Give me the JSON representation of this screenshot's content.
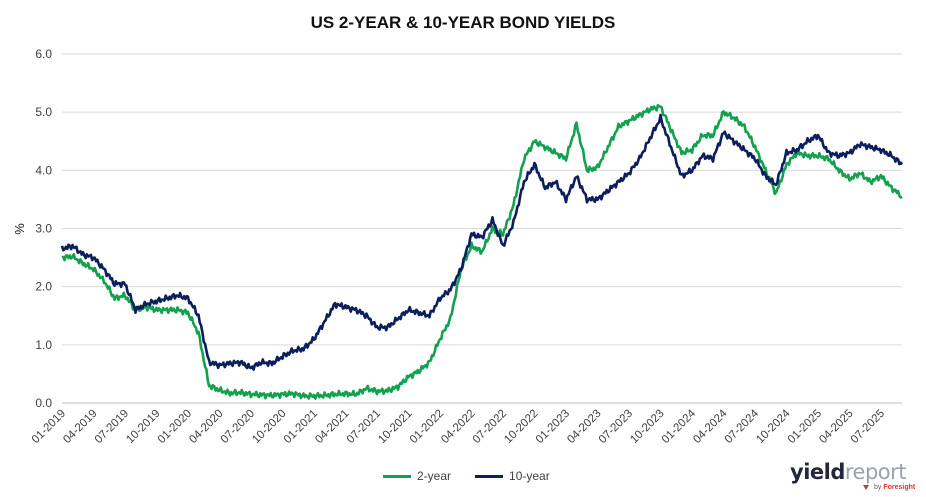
{
  "chart_data": {
    "type": "line",
    "title": "US 2-YEAR & 10-YEAR BOND YIELDS",
    "xlabel": "",
    "ylabel": "%",
    "ylim": [
      0,
      6
    ],
    "yticks": [
      "0.0",
      "1.0",
      "2.0",
      "3.0",
      "4.0",
      "5.0",
      "6.0"
    ],
    "xlim": [
      "2019-01",
      "2025-09"
    ],
    "xticks": [
      "01-2019",
      "04-2019",
      "07-2019",
      "10-2019",
      "01-2020",
      "04-2020",
      "07-2020",
      "10-2020",
      "01-2021",
      "04-2021",
      "07-2021",
      "10-2021",
      "01-2022",
      "04-2022",
      "07-2022",
      "10-2022",
      "01-2023",
      "04-2023",
      "07-2023",
      "10-2023",
      "01-2024",
      "04-2024",
      "07-2024",
      "10-2024",
      "01-2025",
      "04-2025",
      "07-2025"
    ],
    "grid": "horizontal",
    "legend_position": "bottom",
    "series": [
      {
        "name": "2-year",
        "color": "#13a150",
        "x": [
          "2019-01",
          "2019-02",
          "2019-03",
          "2019-04",
          "2019-05",
          "2019-06",
          "2019-07",
          "2019-08",
          "2019-09",
          "2019-10",
          "2019-11",
          "2019-12",
          "2020-01",
          "2020-02",
          "2020-03",
          "2020-04",
          "2020-05",
          "2020-06",
          "2020-07",
          "2020-08",
          "2020-09",
          "2020-10",
          "2020-11",
          "2020-12",
          "2021-01",
          "2021-02",
          "2021-03",
          "2021-04",
          "2021-05",
          "2021-06",
          "2021-07",
          "2021-08",
          "2021-09",
          "2021-10",
          "2021-11",
          "2021-12",
          "2022-01",
          "2022-02",
          "2022-03",
          "2022-04",
          "2022-05",
          "2022-06",
          "2022-07",
          "2022-08",
          "2022-09",
          "2022-10",
          "2022-11",
          "2022-12",
          "2023-01",
          "2023-02",
          "2023-03",
          "2023-04",
          "2023-05",
          "2023-06",
          "2023-07",
          "2023-08",
          "2023-09",
          "2023-10",
          "2023-11",
          "2023-12",
          "2024-01",
          "2024-02",
          "2024-03",
          "2024-04",
          "2024-05",
          "2024-06",
          "2024-07",
          "2024-08",
          "2024-09",
          "2024-10",
          "2024-11",
          "2024-12",
          "2025-01",
          "2025-02",
          "2025-03",
          "2025-04",
          "2025-05",
          "2025-06",
          "2025-07",
          "2025-08",
          "2025-09"
        ],
        "values": [
          2.5,
          2.52,
          2.4,
          2.3,
          2.1,
          1.8,
          1.85,
          1.6,
          1.65,
          1.6,
          1.6,
          1.6,
          1.55,
          1.2,
          0.3,
          0.22,
          0.17,
          0.18,
          0.15,
          0.14,
          0.13,
          0.15,
          0.16,
          0.12,
          0.12,
          0.13,
          0.15,
          0.16,
          0.15,
          0.25,
          0.2,
          0.21,
          0.28,
          0.45,
          0.55,
          0.7,
          1.1,
          1.45,
          2.3,
          2.7,
          2.6,
          3.0,
          2.9,
          3.4,
          4.2,
          4.5,
          4.4,
          4.3,
          4.2,
          4.8,
          4.0,
          4.05,
          4.4,
          4.75,
          4.85,
          4.95,
          5.05,
          5.1,
          4.7,
          4.3,
          4.35,
          4.6,
          4.6,
          5.0,
          4.9,
          4.75,
          4.4,
          4.0,
          3.6,
          4.1,
          4.3,
          4.25,
          4.25,
          4.2,
          4.0,
          3.85,
          3.95,
          3.8,
          3.9,
          3.7,
          3.55
        ]
      },
      {
        "name": "10-year",
        "color": "#0c1e5b",
        "x": [
          "2019-01",
          "2019-02",
          "2019-03",
          "2019-04",
          "2019-05",
          "2019-06",
          "2019-07",
          "2019-08",
          "2019-09",
          "2019-10",
          "2019-11",
          "2019-12",
          "2020-01",
          "2020-02",
          "2020-03",
          "2020-04",
          "2020-05",
          "2020-06",
          "2020-07",
          "2020-08",
          "2020-09",
          "2020-10",
          "2020-11",
          "2020-12",
          "2021-01",
          "2021-02",
          "2021-03",
          "2021-04",
          "2021-05",
          "2021-06",
          "2021-07",
          "2021-08",
          "2021-09",
          "2021-10",
          "2021-11",
          "2021-12",
          "2022-01",
          "2022-02",
          "2022-03",
          "2022-04",
          "2022-05",
          "2022-06",
          "2022-07",
          "2022-08",
          "2022-09",
          "2022-10",
          "2022-11",
          "2022-12",
          "2023-01",
          "2023-02",
          "2023-03",
          "2023-04",
          "2023-05",
          "2023-06",
          "2023-07",
          "2023-08",
          "2023-09",
          "2023-10",
          "2023-11",
          "2023-12",
          "2024-01",
          "2024-02",
          "2024-03",
          "2024-04",
          "2024-05",
          "2024-06",
          "2024-07",
          "2024-08",
          "2024-09",
          "2024-10",
          "2024-11",
          "2024-12",
          "2025-01",
          "2025-02",
          "2025-03",
          "2025-04",
          "2025-05",
          "2025-06",
          "2025-07",
          "2025-08",
          "2025-09"
        ],
        "values": [
          2.65,
          2.7,
          2.55,
          2.5,
          2.3,
          2.05,
          2.05,
          1.6,
          1.7,
          1.75,
          1.8,
          1.85,
          1.8,
          1.5,
          0.7,
          0.65,
          0.68,
          0.7,
          0.6,
          0.7,
          0.68,
          0.8,
          0.9,
          0.93,
          1.1,
          1.4,
          1.7,
          1.65,
          1.6,
          1.5,
          1.3,
          1.3,
          1.45,
          1.6,
          1.55,
          1.5,
          1.8,
          1.95,
          2.3,
          2.9,
          2.85,
          3.15,
          2.7,
          3.1,
          3.8,
          4.1,
          3.7,
          3.8,
          3.5,
          3.9,
          3.5,
          3.5,
          3.65,
          3.8,
          3.95,
          4.2,
          4.55,
          4.9,
          4.4,
          3.9,
          4.0,
          4.25,
          4.2,
          4.65,
          4.5,
          4.35,
          4.2,
          3.9,
          3.75,
          4.3,
          4.35,
          4.5,
          4.6,
          4.3,
          4.25,
          4.3,
          4.45,
          4.4,
          4.35,
          4.25,
          4.1
        ]
      }
    ]
  },
  "logo": {
    "text_main_1": "yield",
    "text_main_2": "report",
    "text_sub_1": "by",
    "text_sub_2": "Foresight"
  }
}
